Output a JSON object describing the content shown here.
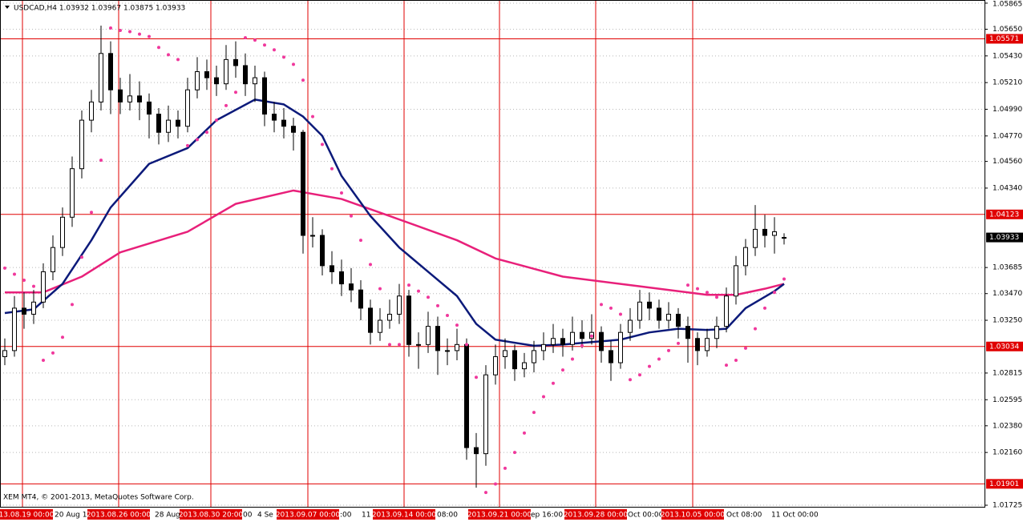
{
  "chart_data": {
    "type": "candlestick",
    "title": "USDCAD,H4  1.03932 1.03967 1.03875 1.03933",
    "copyright": "XEM MT4, © 2001-2013, MetaQuotes Software Corp.",
    "ylim": [
      1.01712,
      1.05891
    ],
    "yticks": [
      1.05865,
      {
        "value": 1.0565,
        "label": "1.05650"
      },
      {
        "value": 1.0543,
        "label": "1.05430"
      },
      {
        "value": 1.0521,
        "label": "1.05210"
      },
      {
        "value": 1.0499,
        "label": "1.04990"
      },
      {
        "value": 1.0477,
        "label": "1.04770"
      },
      {
        "value": 1.0456,
        "label": "1.04560"
      },
      {
        "value": 1.0434,
        "label": "1.04340"
      },
      1.03685,
      {
        "value": 1.0347,
        "label": "1.03470"
      },
      {
        "value": 1.0325,
        "label": "1.03250"
      },
      1.02815,
      1.02595,
      {
        "value": 1.0238,
        "label": "1.02380"
      },
      {
        "value": 1.0216,
        "label": "1.02160"
      },
      1.01725
    ],
    "grid": true,
    "ohlc": [
      [
        1.0295,
        1.031,
        1.0288,
        1.03
      ],
      [
        1.03,
        1.0345,
        1.0295,
        1.0335
      ],
      [
        1.0335,
        1.0348,
        1.0318,
        1.033
      ],
      [
        1.033,
        1.035,
        1.0322,
        1.034
      ],
      [
        1.034,
        1.0372,
        1.0335,
        1.0365
      ],
      [
        1.0365,
        1.0395,
        1.0358,
        1.0385
      ],
      [
        1.0385,
        1.0418,
        1.0378,
        1.041
      ],
      [
        1.041,
        1.046,
        1.0402,
        1.045
      ],
      [
        1.045,
        1.0498,
        1.0442,
        1.049
      ],
      [
        1.049,
        1.0515,
        1.048,
        1.0505
      ],
      [
        1.0505,
        1.0568,
        1.0498,
        1.0545
      ],
      [
        1.0545,
        1.0555,
        1.0495,
        1.0515
      ],
      [
        1.0515,
        1.0525,
        1.0495,
        1.0505
      ],
      [
        1.0505,
        1.0528,
        1.0498,
        1.051
      ],
      [
        1.051,
        1.0522,
        1.049,
        1.0505
      ],
      [
        1.0505,
        1.0512,
        1.0475,
        1.0495
      ],
      [
        1.0495,
        1.05,
        1.047,
        1.048
      ],
      [
        1.048,
        1.0502,
        1.0472,
        1.049
      ],
      [
        1.049,
        1.0498,
        1.0475,
        1.0485
      ],
      [
        1.0485,
        1.0525,
        1.048,
        1.0515
      ],
      [
        1.0515,
        1.0542,
        1.0508,
        1.053
      ],
      [
        1.053,
        1.054,
        1.0515,
        1.0525
      ],
      [
        1.0525,
        1.0535,
        1.051,
        1.052
      ],
      [
        1.052,
        1.0552,
        1.0515,
        1.054
      ],
      [
        1.054,
        1.0555,
        1.0525,
        1.0535
      ],
      [
        1.0535,
        1.0545,
        1.051,
        1.052
      ],
      [
        1.052,
        1.0535,
        1.0505,
        1.0525
      ],
      [
        1.0525,
        1.053,
        1.0485,
        1.0495
      ],
      [
        1.0495,
        1.0505,
        1.048,
        1.049
      ],
      [
        1.049,
        1.05,
        1.0475,
        1.0485
      ],
      [
        1.0485,
        1.0492,
        1.0465,
        1.048
      ],
      [
        1.048,
        1.0482,
        1.038,
        1.0395
      ],
      [
        1.0395,
        1.041,
        1.0385,
        1.0395
      ],
      [
        1.0395,
        1.04,
        1.0362,
        1.037
      ],
      [
        1.037,
        1.0382,
        1.0355,
        1.0365
      ],
      [
        1.0365,
        1.0375,
        1.0345,
        1.0355
      ],
      [
        1.0355,
        1.0368,
        1.034,
        1.035
      ],
      [
        1.035,
        1.0358,
        1.0325,
        1.0335
      ],
      [
        1.0335,
        1.0342,
        1.0305,
        1.0315
      ],
      [
        1.0315,
        1.0335,
        1.0308,
        1.0325
      ],
      [
        1.0325,
        1.0342,
        1.0318,
        1.033
      ],
      [
        1.033,
        1.0355,
        1.0322,
        1.0345
      ],
      [
        1.0345,
        1.035,
        1.0295,
        1.0305
      ],
      [
        1.0305,
        1.0315,
        1.0285,
        1.0305
      ],
      [
        1.0305,
        1.0332,
        1.0298,
        1.032
      ],
      [
        1.032,
        1.0328,
        1.028,
        1.03
      ],
      [
        1.03,
        1.031,
        1.0288,
        1.03
      ],
      [
        1.03,
        1.0318,
        1.0292,
        1.0305
      ],
      [
        1.0305,
        1.031,
        1.021,
        1.022
      ],
      [
        1.022,
        1.0232,
        1.0187,
        1.0215
      ],
      [
        1.0215,
        1.0288,
        1.0205,
        1.028
      ],
      [
        1.028,
        1.0305,
        1.0272,
        1.0295
      ],
      [
        1.0295,
        1.031,
        1.0285,
        1.03
      ],
      [
        1.03,
        1.0305,
        1.0275,
        1.0285
      ],
      [
        1.0285,
        1.0298,
        1.0278,
        1.029
      ],
      [
        1.029,
        1.0308,
        1.0282,
        1.03
      ],
      [
        1.03,
        1.0315,
        1.0292,
        1.0305
      ],
      [
        1.0305,
        1.0322,
        1.0298,
        1.031
      ],
      [
        1.031,
        1.0318,
        1.0295,
        1.0305
      ],
      [
        1.0305,
        1.0328,
        1.03,
        1.0315
      ],
      [
        1.0315,
        1.0325,
        1.0302,
        1.031
      ],
      [
        1.031,
        1.033,
        1.0305,
        1.0315
      ],
      [
        1.0315,
        1.032,
        1.029,
        1.03
      ],
      [
        1.03,
        1.0308,
        1.0275,
        1.029
      ],
      [
        1.029,
        1.0322,
        1.0285,
        1.0315
      ],
      [
        1.0315,
        1.0335,
        1.0308,
        1.0325
      ],
      [
        1.0325,
        1.035,
        1.0318,
        1.034
      ],
      [
        1.034,
        1.0348,
        1.0325,
        1.0335
      ],
      [
        1.0335,
        1.0342,
        1.0318,
        1.0325
      ],
      [
        1.0325,
        1.034,
        1.0318,
        1.033
      ],
      [
        1.033,
        1.0335,
        1.031,
        1.032
      ],
      [
        1.032,
        1.0328,
        1.029,
        1.031
      ],
      [
        1.031,
        1.0315,
        1.0288,
        1.03
      ],
      [
        1.03,
        1.0318,
        1.0295,
        1.031
      ],
      [
        1.031,
        1.0328,
        1.0302,
        1.032
      ],
      [
        1.032,
        1.0352,
        1.0315,
        1.0345
      ],
      [
        1.0345,
        1.0378,
        1.0338,
        1.037
      ],
      [
        1.037,
        1.0392,
        1.0362,
        1.0385
      ],
      [
        1.0385,
        1.042,
        1.0378,
        1.04
      ],
      [
        1.04,
        1.0412,
        1.0385,
        1.0395
      ],
      [
        1.0395,
        1.041,
        1.038,
        1.0398
      ],
      [
        1.03932,
        1.03967,
        1.03875,
        1.03933
      ]
    ],
    "series": [
      {
        "color": "#e8207a",
        "style": "line",
        "x": [
          0,
          4,
          8,
          12,
          19,
          24,
          30,
          35,
          40,
          47,
          51,
          58,
          66,
          73,
          76,
          79,
          81
        ],
        "values": [
          1.0348,
          1.0348,
          1.0361,
          1.0381,
          1.0398,
          1.0421,
          1.0432,
          1.0425,
          1.0411,
          1.0391,
          1.0376,
          1.0361,
          1.0353,
          1.0346,
          1.0346,
          1.0351,
          1.0355
        ]
      },
      {
        "color": "#0c1a7a",
        "style": "line",
        "x": [
          0,
          3,
          6,
          9,
          11,
          15,
          19,
          22,
          26,
          29,
          31,
          33,
          35,
          38,
          41,
          44,
          47,
          49,
          51,
          55,
          58,
          61,
          64,
          67,
          70,
          73,
          75,
          77,
          80,
          81
        ],
        "values": [
          1.0331,
          1.0334,
          1.0355,
          1.0391,
          1.0418,
          1.0454,
          1.0467,
          1.049,
          1.0507,
          1.0503,
          1.0493,
          1.0477,
          1.0444,
          1.0411,
          1.0385,
          1.0365,
          1.0345,
          1.0322,
          1.0309,
          1.0304,
          1.0305,
          1.0307,
          1.0309,
          1.0315,
          1.0318,
          1.0317,
          1.0318,
          1.0335,
          1.0349,
          1.0355
        ]
      },
      {
        "color": "#f0389c",
        "style": "dots",
        "values": [
          1.0368,
          1.0363,
          1.0358,
          1.0353,
          1.0292,
          1.0298,
          1.0311,
          1.0338,
          1.0377,
          1.0414,
          1.0457,
          1.0566,
          1.0564,
          1.0563,
          1.0561,
          1.0559,
          1.055,
          1.0544,
          1.054,
          1.0469,
          1.0474,
          1.048,
          1.049,
          1.0502,
          1.0513,
          1.0558,
          1.0556,
          1.0552,
          1.0548,
          1.0542,
          1.0536,
          1.0523,
          1.0493,
          1.047,
          1.045,
          1.043,
          1.0411,
          1.0391,
          1.0371,
          1.0351,
          1.0305,
          1.0305,
          1.0354,
          1.0349,
          1.0344,
          1.0337,
          1.0329,
          1.0321,
          1.0305,
          1.0278,
          1.0183,
          1.019,
          1.0203,
          1.0216,
          1.0232,
          1.0249,
          1.0262,
          1.0273,
          1.0284,
          1.0293,
          1.0304,
          1.0312,
          1.0338,
          1.0335,
          1.033,
          1.0276,
          1.028,
          1.0287,
          1.0293,
          1.03,
          1.0306,
          1.0354,
          1.0351,
          1.0348,
          1.0344,
          1.0288,
          1.0292,
          1.0302,
          1.0318,
          1.0335,
          1.0348,
          1.0359
        ]
      }
    ],
    "hlines": [
      1.05571,
      1.04123,
      1.03034,
      1.01901
    ],
    "hline_color": "#e00000",
    "last_price": 1.03933,
    "vline_labels": [
      "13.08.19 00:00",
      "2013.08.26 00:00",
      "2013.08.30 20:00",
      "2013.09.07 00:00",
      "2013.09.14 00:00",
      "2013.09.21 00:00",
      "2013.09.28 00:00",
      "2013.10.05 00:00"
    ],
    "xtick_labels": [
      "20 Aug 16",
      "28 Aug",
      "00",
      "4 Se",
      ":00",
      "11",
      "08:00",
      "ep 16:00",
      "Oct 00:00",
      "Oct 08:00",
      "11 Oct 00:00"
    ]
  }
}
